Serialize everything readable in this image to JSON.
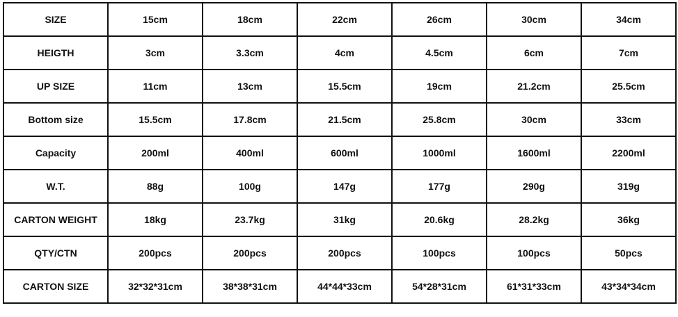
{
  "table": {
    "rows": [
      {
        "label": "SIZE",
        "values": [
          "15cm",
          "18cm",
          "22cm",
          "26cm",
          "30cm",
          "34cm"
        ]
      },
      {
        "label": "HEIGTH",
        "values": [
          "3cm",
          "3.3cm",
          "4cm",
          "4.5cm",
          "6cm",
          "7cm"
        ]
      },
      {
        "label": "UP SIZE",
        "values": [
          "11cm",
          "13cm",
          "15.5cm",
          "19cm",
          "21.2cm",
          "25.5cm"
        ]
      },
      {
        "label": "Bottom size",
        "values": [
          "15.5cm",
          "17.8cm",
          "21.5cm",
          "25.8cm",
          "30cm",
          "33cm"
        ]
      },
      {
        "label": "Capacity",
        "values": [
          "200ml",
          "400ml",
          "600ml",
          "1000ml",
          "1600ml",
          "2200ml"
        ]
      },
      {
        "label": "W.T.",
        "values": [
          "88g",
          "100g",
          "147g",
          "177g",
          "290g",
          "319g"
        ]
      },
      {
        "label": "CARTON WEIGHT",
        "values": [
          "18kg",
          "23.7kg",
          "31kg",
          "20.6kg",
          "28.2kg",
          "36kg"
        ]
      },
      {
        "label": "QTY/CTN",
        "values": [
          "200pcs",
          "200pcs",
          "200pcs",
          "100pcs",
          "100pcs",
          "50pcs"
        ]
      },
      {
        "label": "CARTON SIZE",
        "values": [
          "32*32*31cm",
          "38*38*31cm",
          "44*44*33cm",
          "54*28*31cm",
          "61*31*33cm",
          "43*34*34cm"
        ]
      }
    ]
  }
}
